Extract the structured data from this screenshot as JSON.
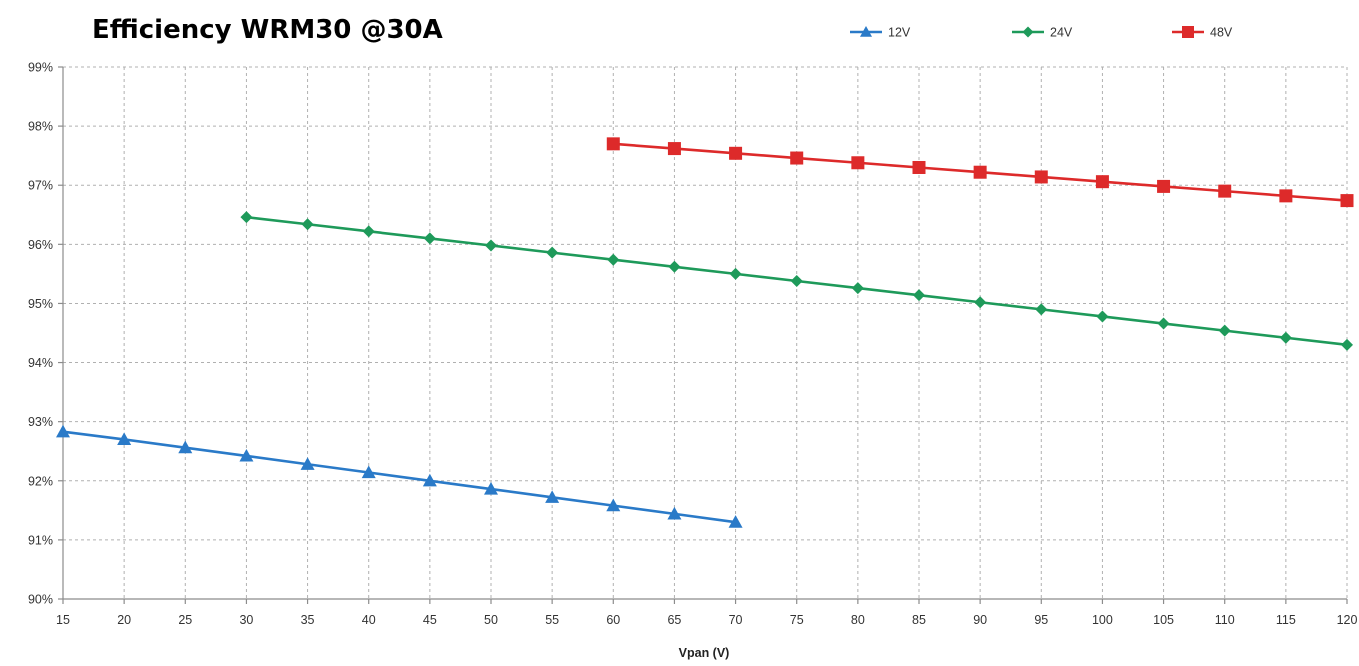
{
  "chart_data": {
    "type": "line",
    "title": "Efficiency WRM30 @30A",
    "xlabel": "Vpan (V)",
    "ylabel": "",
    "x_ticks": [
      "15",
      "20",
      "25",
      "30",
      "35",
      "40",
      "45",
      "50",
      "55",
      "60",
      "65",
      "70",
      "75",
      "80",
      "85",
      "90",
      "95",
      "100",
      "105",
      "110",
      "115",
      "120"
    ],
    "y_ticks": [
      "90%",
      "91%",
      "92%",
      "93%",
      "94%",
      "95%",
      "96%",
      "97%",
      "98%",
      "99%"
    ],
    "xlim": [
      15,
      120
    ],
    "ylim": [
      90,
      99
    ],
    "grid": true,
    "legend_position": "top-right",
    "series": [
      {
        "name": "12V",
        "color": "#2a7ac8",
        "marker": "triangle",
        "x": [
          15,
          20,
          25,
          30,
          35,
          40,
          45,
          50,
          55,
          60,
          65,
          70
        ],
        "y": [
          92.83,
          92.7,
          92.56,
          92.42,
          92.28,
          92.14,
          92.0,
          91.86,
          91.72,
          91.58,
          91.44,
          91.3
        ]
      },
      {
        "name": "24V",
        "color": "#1e9a5a",
        "marker": "diamond",
        "x": [
          30,
          35,
          40,
          45,
          50,
          55,
          60,
          65,
          70,
          75,
          80,
          85,
          90,
          95,
          100,
          105,
          110,
          115,
          120
        ],
        "y": [
          96.46,
          96.34,
          96.22,
          96.1,
          95.98,
          95.86,
          95.74,
          95.62,
          95.5,
          95.38,
          95.26,
          95.14,
          95.02,
          94.9,
          94.78,
          94.66,
          94.54,
          94.42,
          94.3
        ]
      },
      {
        "name": "48V",
        "color": "#dd2a2a",
        "marker": "square",
        "x": [
          60,
          65,
          70,
          75,
          80,
          85,
          90,
          95,
          100,
          105,
          110,
          115,
          120
        ],
        "y": [
          97.7,
          97.62,
          97.54,
          97.46,
          97.38,
          97.3,
          97.22,
          97.14,
          97.06,
          96.98,
          96.9,
          96.82,
          96.74
        ]
      }
    ]
  }
}
